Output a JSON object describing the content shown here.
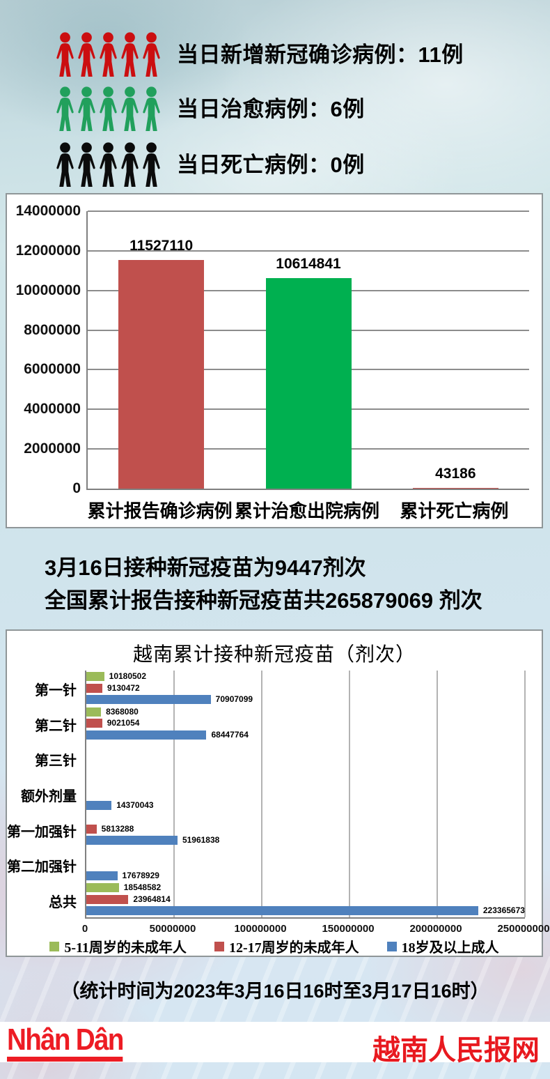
{
  "daily_stats": [
    {
      "icon": "people-group-red",
      "icon_color": "#cb0e10",
      "label": "当日新增新冠确诊病例：11例"
    },
    {
      "icon": "people-group-green",
      "icon_color": "#21a05c",
      "label": "当日治愈病例：6例"
    },
    {
      "icon": "people-group-black",
      "icon_color": "#0b0b0b",
      "label": "当日死亡病例：0例"
    }
  ],
  "chart_data": [
    {
      "type": "bar",
      "title": "",
      "categories": [
        "累计报告确诊病例",
        "累计治愈出院病例",
        "累计死亡病例"
      ],
      "values": [
        11527110,
        10614841,
        43186
      ],
      "bar_colors": [
        "#c0504d",
        "#00b050",
        "#c0504d"
      ],
      "ylim": [
        0,
        14000000
      ],
      "yticks": [
        0,
        2000000,
        4000000,
        6000000,
        8000000,
        10000000,
        12000000,
        14000000
      ],
      "grid": true,
      "legend": "none"
    },
    {
      "type": "bar",
      "orientation": "horizontal",
      "title": "越南累计接种新冠疫苗（剂次）",
      "categories": [
        "第一针",
        "第二针",
        "第三针",
        "额外剂量",
        "第一加强针",
        "第二加强针",
        "总共"
      ],
      "series": [
        {
          "name": "5-11周岁的未成年人",
          "color": "#9bbb59",
          "values": [
            10180502,
            8368080,
            0,
            0,
            0,
            0,
            18548582
          ]
        },
        {
          "name": "12-17周岁的未成年人",
          "color": "#c0504d",
          "values": [
            9130472,
            9021054,
            0,
            0,
            5813288,
            0,
            23964814
          ]
        },
        {
          "name": "18岁及以上成人",
          "color": "#4f81bd",
          "values": [
            70907099,
            68447764,
            0,
            14370043,
            51961838,
            17678929,
            223365673
          ]
        }
      ],
      "xlim": [
        0,
        250000000
      ],
      "xticks": [
        0,
        50000000,
        100000000,
        150000000,
        200000000,
        250000000
      ],
      "grid": true,
      "legend_position": "bottom"
    }
  ],
  "vaccine_summary": {
    "line1": "3月16日接种新冠疫苗为9447剂次",
    "line2": "全国累计报告接种新冠疫苗共265879069 剂次"
  },
  "footnote": "（统计时间为2023年3月16日16时至3月17日16时）",
  "footer": {
    "logo_text": "Nhân Dân",
    "site_name": "越南人民报网"
  },
  "colors": {
    "confirmed_red": "#c0504d",
    "cured_green": "#00b050",
    "adult_blue": "#4f81bd",
    "child_green": "#9bbb59",
    "brand_red": "#ed1c24"
  }
}
